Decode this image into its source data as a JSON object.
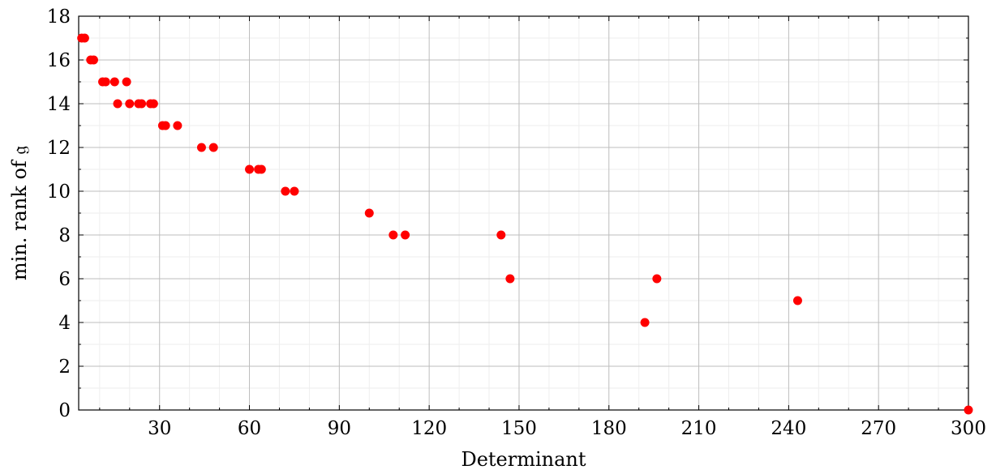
{
  "chart_data": {
    "type": "scatter",
    "xlabel": "Determinant",
    "ylabel": "min. rank of 𝔤",
    "xlim": [
      3,
      300
    ],
    "ylim": [
      0,
      18
    ],
    "xticks": [
      30,
      60,
      90,
      120,
      150,
      180,
      210,
      240,
      270,
      300
    ],
    "yticks": [
      0,
      2,
      4,
      6,
      8,
      10,
      12,
      14,
      16,
      18
    ],
    "grid": true,
    "point_color": "#ff0000",
    "series": [
      {
        "points": [
          {
            "x": 4,
            "y": 17
          },
          {
            "x": 5,
            "y": 17
          },
          {
            "x": 7,
            "y": 16
          },
          {
            "x": 8,
            "y": 16
          },
          {
            "x": 11,
            "y": 15
          },
          {
            "x": 12,
            "y": 15
          },
          {
            "x": 15,
            "y": 15
          },
          {
            "x": 19,
            "y": 15
          },
          {
            "x": 16,
            "y": 14
          },
          {
            "x": 20,
            "y": 14
          },
          {
            "x": 23,
            "y": 14
          },
          {
            "x": 24,
            "y": 14
          },
          {
            "x": 27,
            "y": 14
          },
          {
            "x": 28,
            "y": 14
          },
          {
            "x": 31,
            "y": 13
          },
          {
            "x": 32,
            "y": 13
          },
          {
            "x": 36,
            "y": 13
          },
          {
            "x": 44,
            "y": 12
          },
          {
            "x": 48,
            "y": 12
          },
          {
            "x": 60,
            "y": 11
          },
          {
            "x": 63,
            "y": 11
          },
          {
            "x": 64,
            "y": 11
          },
          {
            "x": 72,
            "y": 10
          },
          {
            "x": 75,
            "y": 10
          },
          {
            "x": 100,
            "y": 9
          },
          {
            "x": 108,
            "y": 8
          },
          {
            "x": 112,
            "y": 8
          },
          {
            "x": 144,
            "y": 8
          },
          {
            "x": 147,
            "y": 6
          },
          {
            "x": 196,
            "y": 6
          },
          {
            "x": 243,
            "y": 5
          },
          {
            "x": 192,
            "y": 4
          },
          {
            "x": 300,
            "y": 0
          }
        ]
      }
    ]
  }
}
